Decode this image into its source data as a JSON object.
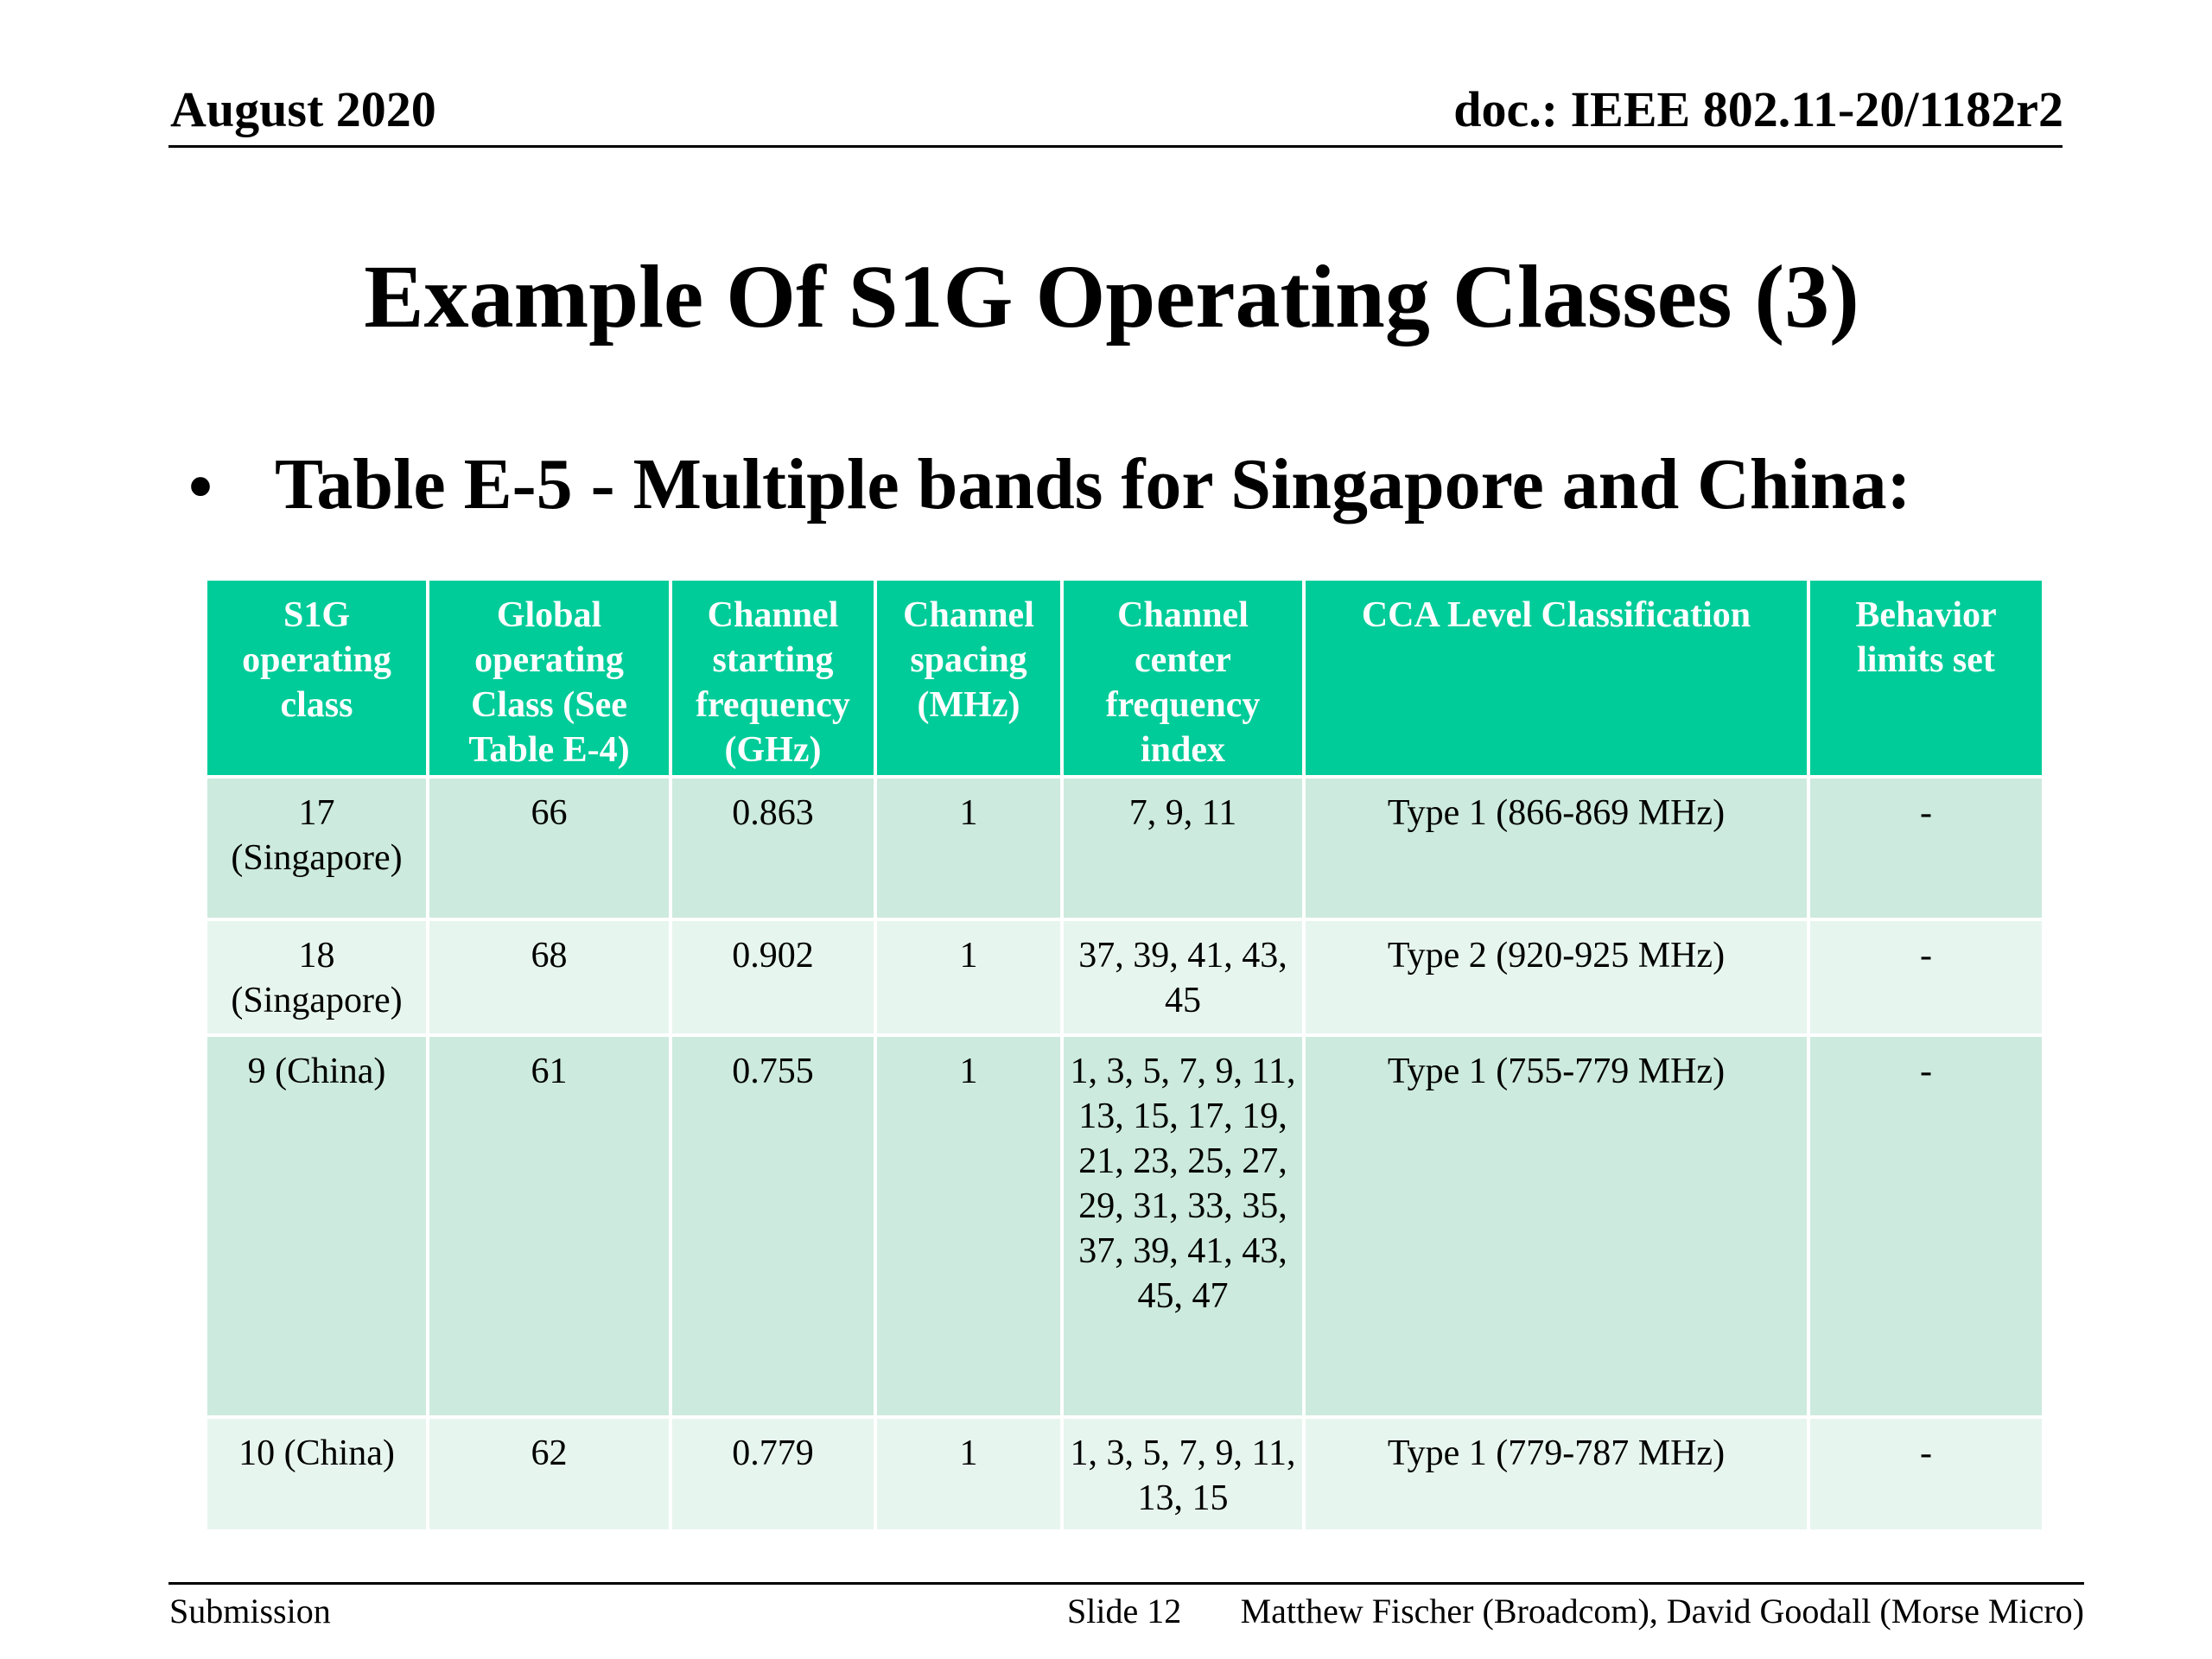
{
  "header": {
    "date": "August 2020",
    "doc_id": "doc.: IEEE 802.11-20/1182r2"
  },
  "title": "Example Of S1G Operating Classes (3)",
  "bullet": {
    "marker": "•",
    "text": "Table E-5 - Multiple bands for Singapore and China:"
  },
  "table": {
    "columns": [
      "S1G operating class",
      "Global operating Class (See Table E-4)",
      "Channel starting frequency (GHz)",
      "Channel spacing (MHz)",
      "Channel center frequency index",
      "CCA Level Classification",
      "Behavior limits set"
    ],
    "rows": [
      [
        "17 (Singapore)",
        "66",
        "0.863",
        "1",
        "7, 9, 11",
        "Type 1 (866-869 MHz)",
        "-"
      ],
      [
        "18 (Singapore)",
        "68",
        "0.902",
        "1",
        "37, 39, 41, 43, 45",
        "Type 2 (920-925 MHz)",
        "-"
      ],
      [
        "9 (China)",
        "61",
        "0.755",
        "1",
        "1, 3, 5, 7, 9, 11, 13, 15, 17, 19, 21, 23, 25, 27, 29, 31, 33, 35, 37, 39, 41, 43, 45, 47",
        "Type 1 (755-779 MHz)",
        "-"
      ],
      [
        "10 (China)",
        "62",
        "0.779",
        "1",
        "1, 3, 5, 7, 9, 11, 13, 15",
        "Type 1 (779-787 MHz)",
        "-"
      ]
    ]
  },
  "footer": {
    "left": "Submission",
    "slide": "Slide 12",
    "authors": "Matthew Fischer (Broadcom), David Goodall (Morse Micro)"
  },
  "colors": {
    "header_fill": "#00cc99",
    "row_odd_fill": "#cceadd",
    "row_even_fill": "#e7f5ef"
  }
}
